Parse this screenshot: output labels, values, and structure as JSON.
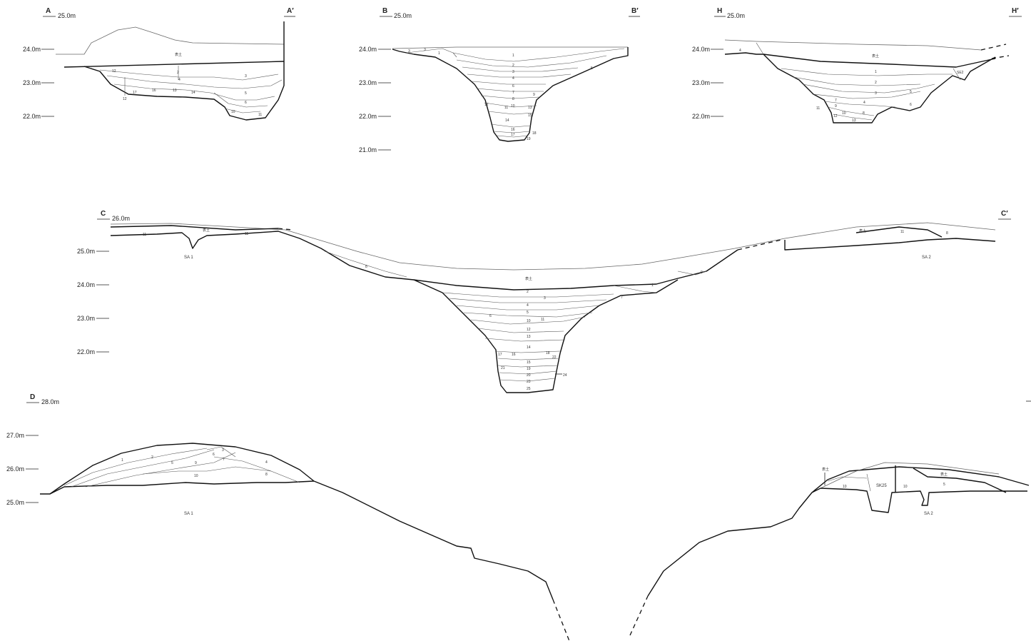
{
  "sections": [
    {
      "id": "AA",
      "start_label": "A",
      "end_label": "A′",
      "datum": "25.0m",
      "elevations": [
        "24.0m",
        "23.0m",
        "22.0m"
      ],
      "surface_label": "表土",
      "layers": [
        "2",
        "3",
        "4",
        "5",
        "6",
        "10",
        "11",
        "12",
        "12",
        "13",
        "14",
        "16",
        "17"
      ]
    },
    {
      "id": "BB",
      "start_label": "B",
      "end_label": "B′",
      "datum": "25.0m",
      "elevations": [
        "24.0m",
        "23.0m",
        "22.0m",
        "21.0m"
      ],
      "layers": [
        "1",
        "2",
        "3",
        "4",
        "5",
        "6",
        "7",
        "8",
        "9",
        "10",
        "11",
        "12",
        "13",
        "14",
        "15",
        "16",
        "17",
        "18",
        "19",
        "1",
        "3",
        "3"
      ]
    },
    {
      "id": "HH",
      "start_label": "H",
      "end_label": "H′",
      "datum": "25.0m",
      "elevations": [
        "24.0m",
        "23.0m",
        "22.0m"
      ],
      "surface_label": "表土",
      "feature_label": "SE2",
      "layers": [
        "1",
        "2",
        "3",
        "4",
        "5",
        "6",
        "7",
        "8",
        "9",
        "10",
        "11",
        "12",
        "13",
        "4"
      ]
    },
    {
      "id": "CC",
      "start_label": "C",
      "end_label": "C′",
      "datum": "26.0m",
      "elevations": [
        "25.0m",
        "24.0m",
        "23.0m",
        "22.0m"
      ],
      "surface_label": "表土",
      "features": [
        "SA 1",
        "SA 2"
      ],
      "layers": [
        "1",
        "2",
        "3",
        "4",
        "5",
        "6",
        "7",
        "8",
        "9",
        "10",
        "11",
        "12",
        "13",
        "14",
        "15",
        "16",
        "17",
        "18",
        "19",
        "20",
        "21",
        "22",
        "23",
        "24",
        "25",
        "11",
        "11",
        "11",
        "8"
      ]
    },
    {
      "id": "DD",
      "start_label": "D",
      "datum": "28.0m",
      "elevations": [
        "27.0m",
        "26.0m",
        "25.0m"
      ],
      "surface_label": "表土",
      "features": [
        "SA 1",
        "SA 2",
        "SK25"
      ],
      "layers": [
        "1",
        "2",
        "3",
        "4",
        "5",
        "6",
        "7",
        "8",
        "9",
        "10",
        "10",
        "10",
        "5"
      ]
    }
  ]
}
